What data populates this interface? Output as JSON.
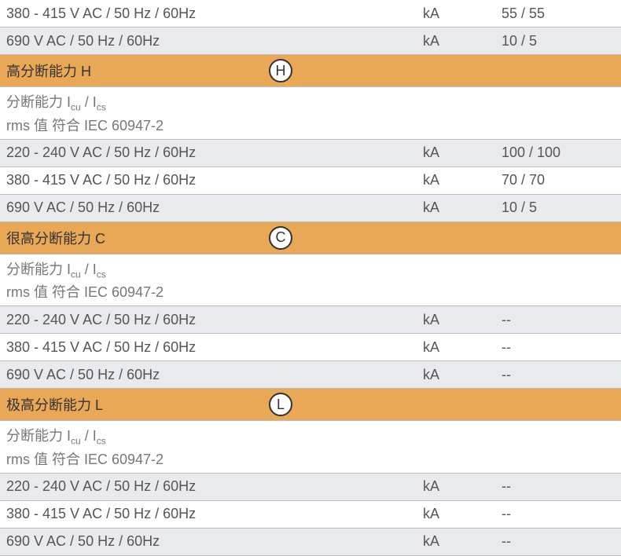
{
  "colors": {
    "header_bg": "#e9a856",
    "gray_bg": "#e8eaed",
    "white_bg": "#ffffff",
    "text": "#555555",
    "border": "#bbbbbb"
  },
  "top_rows": [
    {
      "label": "380 - 415 V AC / 50 Hz / 60Hz",
      "unit": "kA",
      "value": "55 / 55",
      "bg": "white"
    },
    {
      "label": "690 V AC / 50 Hz / 60Hz",
      "unit": "kA",
      "value": "10 / 5",
      "bg": "gray"
    }
  ],
  "sections": [
    {
      "title": "高分断能力 H",
      "badge": "H",
      "sub1_prefix": "分断能力 I",
      "sub1_sub1": "cu",
      "sub1_mid": " / I",
      "sub1_sub2": "cs",
      "sub2": "rms 值 符合 IEC 60947-2",
      "rows": [
        {
          "label": "220 - 240 V AC / 50 Hz / 60Hz",
          "unit": "kA",
          "value": "100 / 100",
          "bg": "gray"
        },
        {
          "label": "380 - 415 V AC / 50 Hz / 60Hz",
          "unit": "kA",
          "value": "70 / 70",
          "bg": "white"
        },
        {
          "label": "690 V AC / 50 Hz / 60Hz",
          "unit": "kA",
          "value": "10 / 5",
          "bg": "gray"
        }
      ]
    },
    {
      "title": "很高分断能力 C",
      "badge": "C",
      "sub1_prefix": "分断能力 I",
      "sub1_sub1": "cu",
      "sub1_mid": " / I",
      "sub1_sub2": "cs",
      "sub2": "rms 值 符合 IEC 60947-2",
      "rows": [
        {
          "label": "220 - 240 V AC / 50 Hz / 60Hz",
          "unit": "kA",
          "value": "--",
          "bg": "gray"
        },
        {
          "label": "380 - 415 V AC / 50 Hz / 60Hz",
          "unit": "kA",
          "value": "--",
          "bg": "white"
        },
        {
          "label": "690 V AC / 50 Hz / 60Hz",
          "unit": "kA",
          "value": "--",
          "bg": "gray"
        }
      ]
    },
    {
      "title": "极高分断能力 L",
      "badge": "L",
      "sub1_prefix": "分断能力 I",
      "sub1_sub1": "cu",
      "sub1_mid": " / I",
      "sub1_sub2": "cs",
      "sub2": "rms 值 符合 IEC 60947-2",
      "rows": [
        {
          "label": "220 - 240 V AC / 50 Hz / 60Hz",
          "unit": "kA",
          "value": "--",
          "bg": "gray"
        },
        {
          "label": "380 - 415 V AC / 50 Hz / 60Hz",
          "unit": "kA",
          "value": "--",
          "bg": "white"
        },
        {
          "label": "690 V AC / 50 Hz / 60Hz",
          "unit": "kA",
          "value": "--",
          "bg": "gray"
        }
      ]
    }
  ]
}
